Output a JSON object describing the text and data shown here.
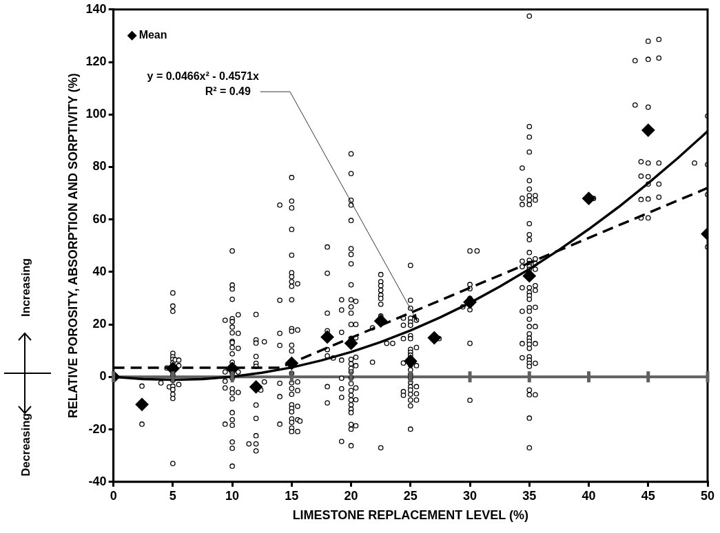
{
  "chart_data": {
    "type": "scatter",
    "xlabel": "LIMESTONE REPLACEMENT LEVEL (%)",
    "ylabel": "RELATIVE POROSITY, ABSORPTION AND SORPTIVITY (%)",
    "xlim": [
      0,
      50
    ],
    "xticks": [
      0,
      5,
      10,
      15,
      20,
      25,
      30,
      35,
      40,
      45,
      50
    ],
    "ylim": [
      -40,
      140
    ],
    "yticks": [
      -40,
      -20,
      0,
      20,
      40,
      60,
      80,
      100,
      120,
      140
    ],
    "grid": false,
    "legend": "top left",
    "ref_lines": [
      {
        "axis": "y",
        "value": 0,
        "color": "#606060"
      }
    ],
    "annotations": [
      {
        "text": "y = 0.0466x² - 0.4571x",
        "x": 25.6,
        "y": 21
      },
      "R² = 0.49",
      "Increasing",
      "Decreasing"
    ],
    "series": [
      {
        "type": "scatter",
        "color": "#000000",
        "marker": "circle",
        "x": [
          2.4,
          2.4,
          4,
          4.5,
          4.7,
          5,
          5,
          5,
          5,
          5,
          5,
          5,
          5,
          5,
          5,
          5,
          5,
          5,
          5,
          5.2,
          5.5,
          5.5,
          5.5,
          9.4,
          9.4,
          9.4,
          9.4,
          9.4,
          10,
          10,
          10,
          10,
          10,
          10,
          10,
          10,
          10,
          10,
          10,
          10,
          10,
          10,
          10,
          10,
          10,
          10,
          10,
          10,
          10,
          10,
          10,
          10,
          10.5,
          10.5,
          10.5,
          10.5,
          10.5,
          11.4,
          12,
          12,
          12,
          12,
          12,
          12,
          12,
          12,
          12,
          12,
          12,
          12.4,
          12.7,
          12.7,
          14,
          14,
          14,
          14,
          14,
          14,
          14,
          15,
          15,
          15,
          15,
          15,
          15,
          15,
          15,
          15,
          15,
          15,
          15,
          15,
          15,
          15,
          15,
          15,
          15,
          15,
          15,
          15,
          15,
          15,
          15,
          15,
          15.5,
          15.5,
          15.5,
          15.5,
          15.5,
          15.5,
          15.5,
          15.7,
          18,
          18,
          18,
          18,
          18,
          18,
          18,
          18,
          18.5,
          19.2,
          19.2,
          19.2,
          19.2,
          19.2,
          19.2,
          19.2,
          19.2,
          20,
          20,
          20,
          20,
          20,
          20,
          20,
          20,
          20,
          20,
          20,
          20,
          20,
          20,
          20,
          20,
          20,
          20,
          20,
          20,
          20,
          20,
          20,
          20,
          20,
          20,
          20,
          20,
          20,
          20.4,
          20.4,
          20.4,
          20.4,
          20.4,
          20.4,
          20.4,
          20.4,
          21.8,
          21.8,
          22.5,
          22.5,
          22.5,
          22.5,
          22.5,
          22.5,
          22.5,
          22.5,
          22.5,
          23,
          23.5,
          24.4,
          24.4,
          24.4,
          24.4,
          24.4,
          24.4,
          25,
          25,
          25,
          25,
          25,
          25,
          25,
          25,
          25,
          25,
          25,
          25,
          25,
          25,
          25,
          25,
          25,
          25,
          25,
          25,
          25,
          25,
          25,
          25.5,
          25.5,
          25.5,
          25.5,
          25.5,
          25.5,
          27.4,
          29.4,
          30,
          30,
          30,
          30,
          30,
          30,
          30,
          30.6,
          34.4,
          34.4,
          34.4,
          34.4,
          34.4,
          34.4,
          34.4,
          34.4,
          34.4,
          35,
          35,
          35,
          35,
          35,
          35,
          35,
          35,
          35,
          35,
          35,
          35,
          35,
          35,
          35,
          35,
          35,
          35,
          35,
          35,
          35,
          35,
          35,
          35,
          35,
          35,
          35,
          35,
          35,
          35,
          35,
          35,
          35,
          35,
          35,
          35,
          35,
          35,
          35.5,
          35.5,
          35.5,
          35.5,
          35.5,
          35.5,
          35.5,
          35.5,
          35.5,
          35.5,
          35.5,
          35.5,
          40.4,
          43.9,
          43.9,
          44.4,
          44.4,
          44.4,
          44.4,
          45,
          45,
          45,
          45,
          45,
          45,
          45,
          45,
          45.9,
          45.9,
          45.9,
          45.9,
          45.9,
          48.9,
          50,
          50,
          50,
          50
        ],
        "values": [
          -3.5,
          -18,
          -2.3,
          3.4,
          -3.8,
          32,
          27,
          25,
          9,
          7.7,
          6.7,
          5.4,
          0.8,
          -1.3,
          -3.5,
          -4.8,
          -6.6,
          -8.2,
          -33,
          6.5,
          6.4,
          4.3,
          -2.9,
          21.6,
          1.9,
          -1.6,
          -4.2,
          -18,
          48,
          35,
          33.5,
          29.6,
          22.2,
          21.1,
          19,
          16.8,
          13.6,
          13.1,
          11.2,
          8.8,
          5.6,
          1.4,
          -0.4,
          -4.5,
          -6.1,
          -8.3,
          -13.6,
          -16.3,
          -18.4,
          -24.8,
          -27.2,
          -34,
          23.7,
          16.6,
          10.9,
          1.9,
          -5.9,
          -25.5,
          23.8,
          14.1,
          12.9,
          7.8,
          5.2,
          4,
          -10.7,
          -15.8,
          -22.4,
          -25.5,
          -28.2,
          -5,
          13.4,
          -1.9,
          65.5,
          29.2,
          16.6,
          12,
          -2.4,
          -7.5,
          -18,
          76,
          67,
          64.4,
          56.2,
          46.4,
          39.7,
          38.2,
          36.3,
          34.5,
          29.4,
          18.4,
          17.4,
          12.1,
          9.9,
          1.4,
          -2.2,
          -4.4,
          -6.6,
          -10.6,
          -12,
          -13.3,
          -16,
          -17.3,
          -19.5,
          -20.8,
          35.5,
          17.9,
          -1.9,
          -5.2,
          -11.2,
          -16.3,
          -20.8,
          -16.8,
          49.5,
          39.5,
          24.3,
          17.6,
          10.4,
          8,
          -3.7,
          -9.9,
          7.2,
          29.4,
          25.5,
          17,
          6.4,
          -0.5,
          -4.5,
          -7.8,
          -24.6,
          85,
          77.5,
          67.3,
          65.5,
          59.6,
          48.9,
          46.7,
          43.1,
          35.1,
          29.4,
          26.7,
          24.3,
          20,
          14.7,
          6.7,
          5,
          3.2,
          1.9,
          -0.3,
          -2.5,
          -5.2,
          -7,
          -8.8,
          -10.6,
          -12.3,
          -13.6,
          -18.1,
          -19.9,
          -26.2,
          28.8,
          20,
          14.9,
          7.5,
          4.3,
          -4.2,
          -8.7,
          -18.6,
          18.7,
          5.6,
          39,
          36.3,
          34.8,
          33,
          31.2,
          29.9,
          27.7,
          23.2,
          -27,
          12.8,
          12.8,
          22.4,
          19.7,
          14.6,
          5.3,
          -5.6,
          -7,
          42.5,
          29.2,
          26.2,
          22.4,
          20.9,
          19.7,
          15.7,
          14.6,
          10.5,
          9.4,
          8.3,
          7.2,
          4.5,
          2.7,
          1,
          -0.5,
          -2.1,
          -3.7,
          -5,
          -6.6,
          -8.8,
          -11,
          -19.9,
          21.6,
          11.2,
          4.3,
          -3.7,
          -6.4,
          -8.8,
          14.6,
          26.7,
          48,
          35.2,
          33.6,
          29.9,
          25.6,
          12.8,
          -8.9,
          48,
          79.6,
          68.1,
          65.7,
          44.1,
          42,
          34,
          25,
          12.7,
          7.3,
          137.5,
          95.4,
          91.4,
          85.7,
          74.8,
          71.6,
          69.1,
          67.4,
          65.7,
          58.4,
          54.2,
          52.3,
          47.4,
          44.4,
          43.2,
          42,
          41,
          34,
          32.2,
          31,
          29.6,
          26.4,
          25,
          22,
          19.2,
          16.4,
          14.8,
          13.6,
          12.4,
          10.9,
          7.7,
          6.4,
          5.2,
          4,
          -5,
          -6.8,
          -15.7,
          -27,
          69.1,
          67.4,
          45,
          43.2,
          41,
          34.8,
          33,
          26.5,
          19.2,
          12.7,
          5.2,
          -6.8,
          68,
          120.5,
          103.6,
          82,
          76.5,
          67.6,
          60.6,
          127.9,
          121,
          102.8,
          81.5,
          76.3,
          73.5,
          67.8,
          60.6,
          128.6,
          121.5,
          81.5,
          73.5,
          68.5,
          81.5,
          99.4,
          80.9,
          69.5,
          49.5
        ]
      },
      {
        "type": "scatter",
        "name": "Mean",
        "color": "#000000",
        "marker": "diamond",
        "x": [
          0,
          2.4,
          5,
          10,
          12,
          15,
          18,
          20,
          22.5,
          25,
          27,
          30,
          35,
          40,
          45,
          50
        ],
        "values": [
          0,
          -10.5,
          3.2,
          3.2,
          -3.8,
          5.2,
          15.2,
          12.8,
          21.3,
          6,
          14.9,
          28.5,
          38.5,
          68,
          94,
          54.5
        ]
      },
      {
        "type": "line",
        "color": "#000000",
        "marker": "none",
        "line_style": "solid",
        "x": [
          0,
          2.5,
          5,
          7.5,
          10,
          12.5,
          15,
          17.5,
          20,
          22.5,
          25,
          27.5,
          30,
          32.5,
          35,
          37.5,
          40,
          42.5,
          45,
          47.5,
          50
        ],
        "values": [
          0,
          -0.8,
          -1.1,
          -0.8,
          0.1,
          1.6,
          3.6,
          6.3,
          9.5,
          13.3,
          17.7,
          22.7,
          28.2,
          34.4,
          41.1,
          48.4,
          56.3,
          64.7,
          73.8,
          83.4,
          93.6
        ]
      },
      {
        "type": "line",
        "color": "#000000",
        "marker": "none",
        "line_style": "dashed",
        "x": [
          0,
          14,
          50
        ],
        "values": [
          3.5,
          3.5,
          72
        ]
      }
    ]
  }
}
